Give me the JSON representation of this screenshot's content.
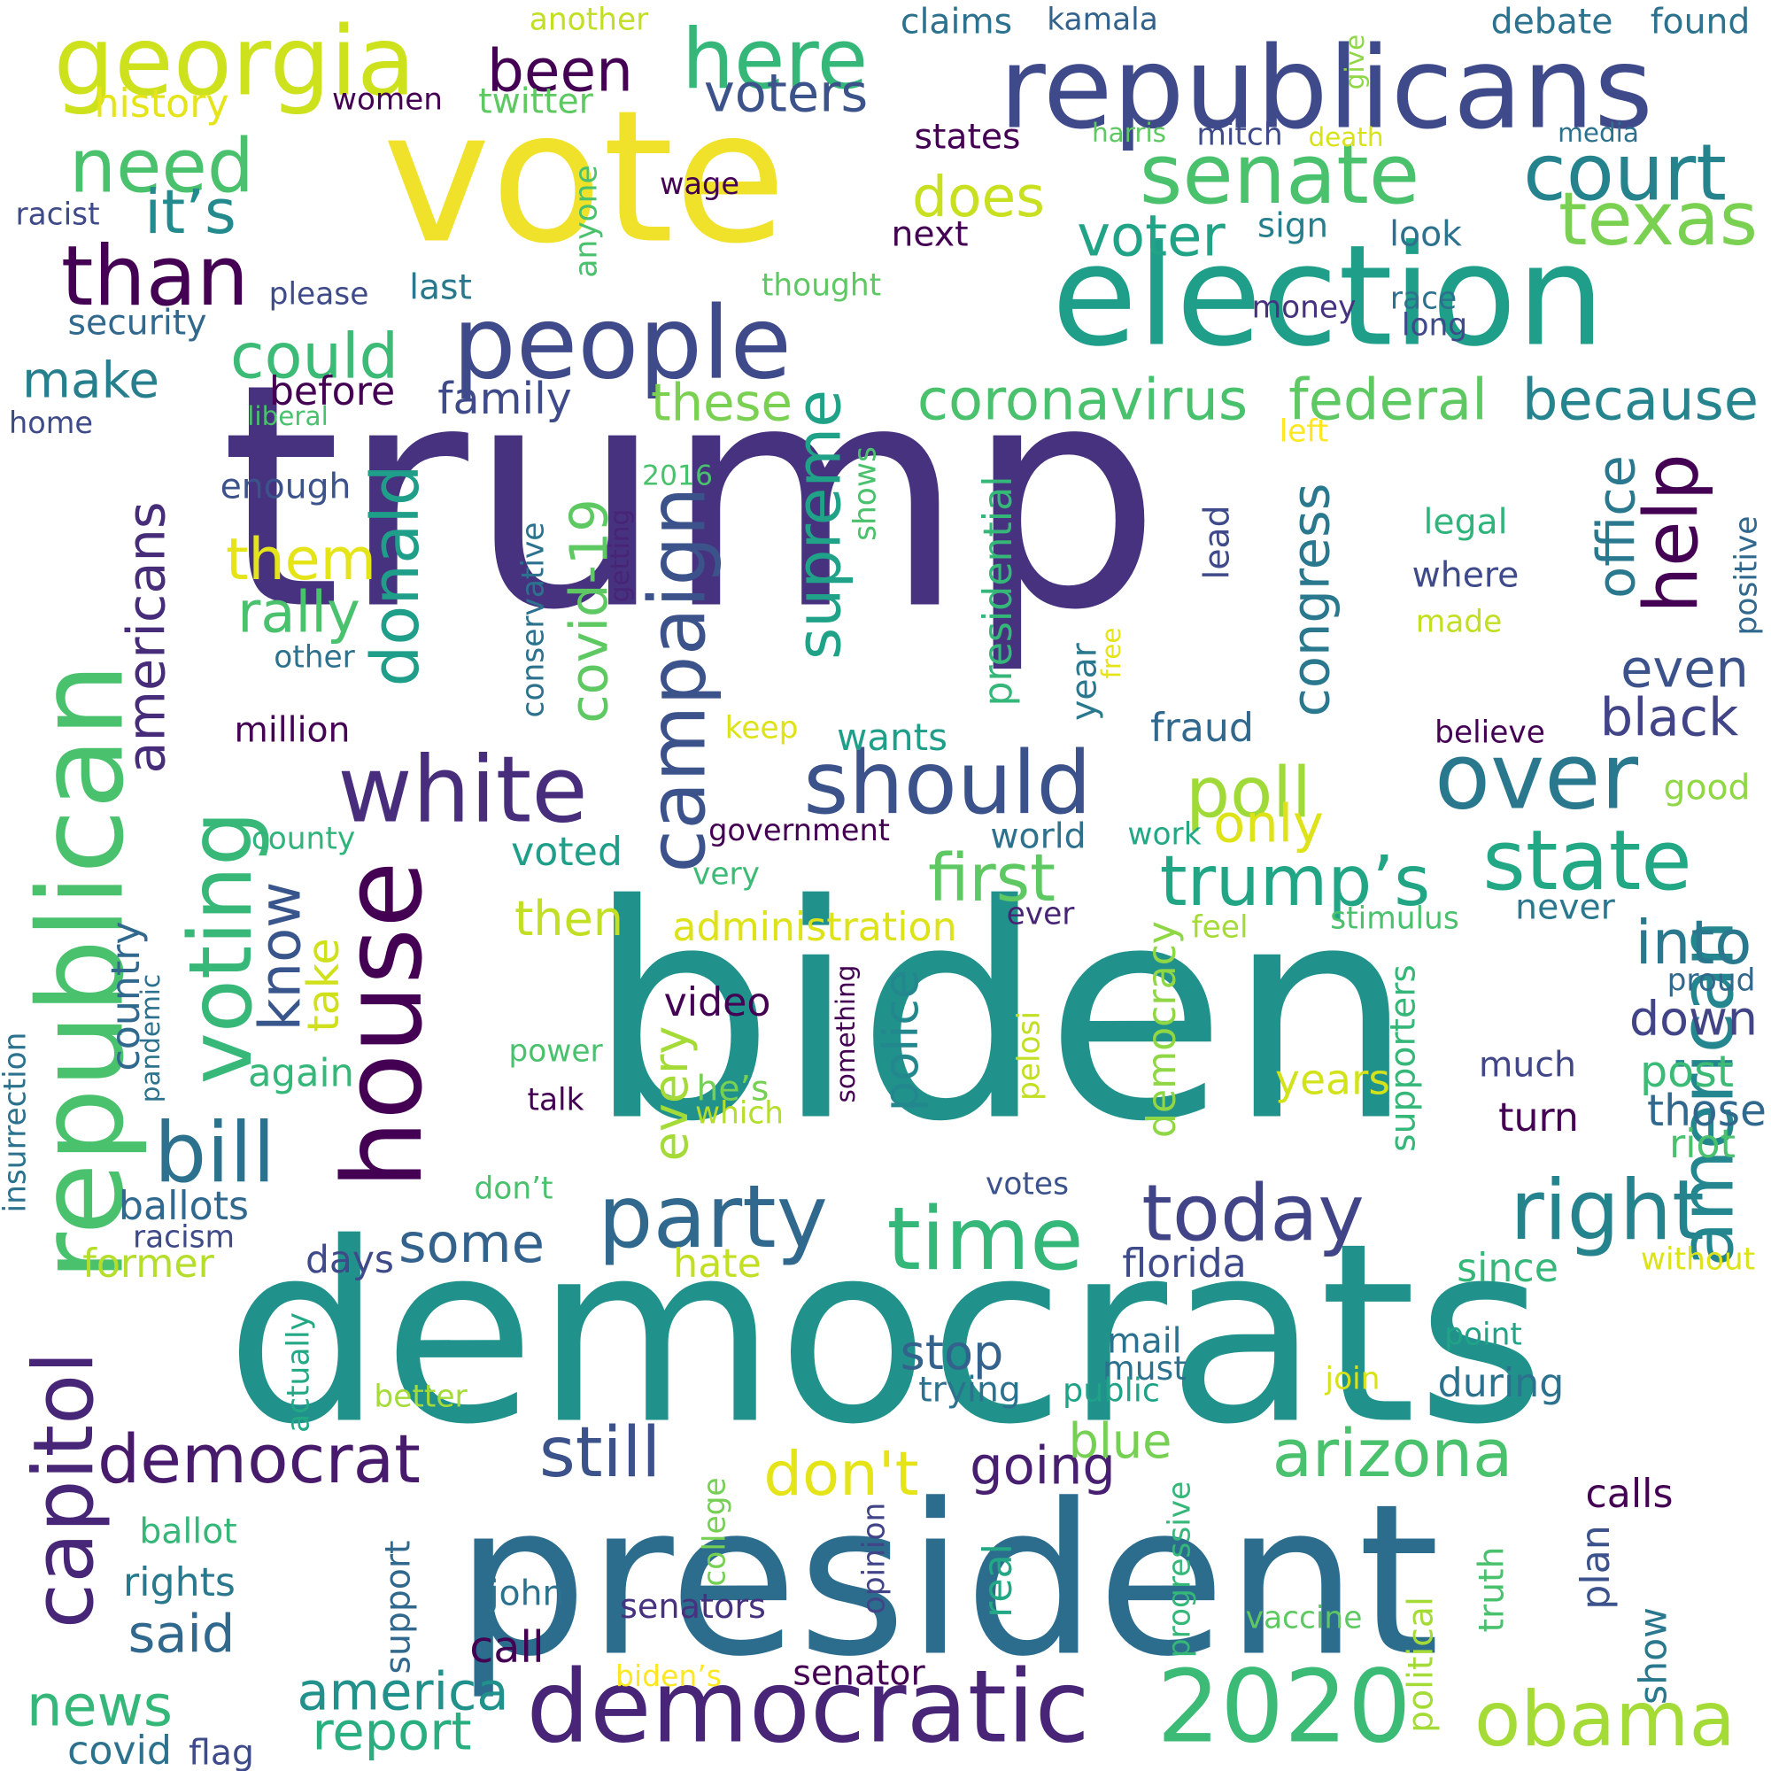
{
  "words": [
    {
      "text": "trump",
      "color": "#46327e"
    },
    {
      "text": "biden",
      "color": "#21918c"
    },
    {
      "text": "vote",
      "color": "#f0e22a"
    },
    {
      "text": "democrats",
      "color": "#21918c"
    },
    {
      "text": "president",
      "color": "#2c6d8e"
    },
    {
      "text": "election",
      "color": "#1f9e89"
    },
    {
      "text": "republicans",
      "color": "#3e4a89"
    },
    {
      "text": "republican",
      "color": "#4ac16d"
    },
    {
      "text": "house",
      "color": "#440154"
    },
    {
      "text": "people",
      "color": "#3e4a89"
    },
    {
      "text": "georgia",
      "color": "#cde11d"
    },
    {
      "text": "white",
      "color": "#472d7b"
    },
    {
      "text": "should",
      "color": "#3b528b"
    },
    {
      "text": "senate",
      "color": "#4ac16d"
    },
    {
      "text": "democratic",
      "color": "#482576"
    },
    {
      "text": "party",
      "color": "#31688e"
    },
    {
      "text": "time",
      "color": "#35b779"
    },
    {
      "text": "voting",
      "color": "#37b878"
    },
    {
      "text": "campaign",
      "color": "#3b528b"
    },
    {
      "text": "over",
      "color": "#2a788e"
    },
    {
      "text": "2020",
      "color": "#3bbb75"
    },
    {
      "text": "capitol",
      "color": "#482677"
    },
    {
      "text": "than",
      "color": "#440154"
    },
    {
      "text": "today",
      "color": "#414487"
    },
    {
      "text": "right",
      "color": "#25838e"
    },
    {
      "text": "state",
      "color": "#22a884"
    },
    {
      "text": "donald",
      "color": "#1f9e89"
    },
    {
      "text": "obama",
      "color": "#a5db36"
    },
    {
      "text": "court",
      "color": "#25838e"
    },
    {
      "text": "here",
      "color": "#35b779"
    },
    {
      "text": "need",
      "color": "#4ac16d"
    },
    {
      "text": "democrat",
      "color": "#481a6c"
    },
    {
      "text": "american",
      "color": "#24868e"
    },
    {
      "text": "help",
      "color": "#440154"
    },
    {
      "text": "bill",
      "color": "#2c728e"
    },
    {
      "text": "arizona",
      "color": "#4ac16d"
    },
    {
      "text": "texas",
      "color": "#7ad151"
    },
    {
      "text": "supreme",
      "color": "#1fa287"
    },
    {
      "text": "first",
      "color": "#5ec962"
    },
    {
      "text": "trump’s",
      "color": "#21a585"
    },
    {
      "text": "still",
      "color": "#3b528b"
    },
    {
      "text": "know",
      "color": "#39568c"
    },
    {
      "text": "americans",
      "color": "#472c7a"
    },
    {
      "text": "poll",
      "color": "#a0da39"
    },
    {
      "text": "coronavirus",
      "color": "#4ac16d"
    },
    {
      "text": "because",
      "color": "#25848e"
    },
    {
      "text": "been",
      "color": "#440154"
    },
    {
      "text": "could",
      "color": "#3bbb75"
    },
    {
      "text": "them",
      "color": "#e5e419"
    },
    {
      "text": "news",
      "color": "#35b779"
    },
    {
      "text": "some",
      "color": "#33638d"
    },
    {
      "text": "into",
      "color": "#2a788e"
    },
    {
      "text": "it’s",
      "color": "#238a8d"
    },
    {
      "text": "voter",
      "color": "#20a386"
    },
    {
      "text": "voters",
      "color": "#3b528b"
    },
    {
      "text": "federal",
      "color": "#5ec962"
    },
    {
      "text": "covid-19",
      "color": "#5ec962"
    },
    {
      "text": "rally",
      "color": "#4ac16d"
    },
    {
      "text": "make",
      "color": "#277f8e"
    },
    {
      "text": "does",
      "color": "#c8e020"
    },
    {
      "text": "these",
      "color": "#7ad151"
    },
    {
      "text": "america",
      "color": "#21918c"
    },
    {
      "text": "report",
      "color": "#29af7f"
    },
    {
      "text": "don't",
      "color": "#e5e419"
    },
    {
      "text": "going",
      "color": "#481f70"
    },
    {
      "text": "congress",
      "color": "#2a788e"
    },
    {
      "text": "office",
      "color": "#2a788e"
    },
    {
      "text": "black",
      "color": "#414487"
    },
    {
      "text": "even",
      "color": "#3b528b"
    },
    {
      "text": "down",
      "color": "#414487"
    },
    {
      "text": "take",
      "color": "#d0e11c"
    },
    {
      "text": "police",
      "color": "#23888e"
    },
    {
      "text": "every",
      "color": "#a5db36"
    },
    {
      "text": "said",
      "color": "#31688e"
    },
    {
      "text": "only",
      "color": "#dde318"
    },
    {
      "text": "then",
      "color": "#c2df23"
    },
    {
      "text": "stop",
      "color": "#33638d"
    },
    {
      "text": "administration",
      "color": "#dde318"
    },
    {
      "text": "country",
      "color": "#31688e"
    },
    {
      "text": "blue",
      "color": "#75d054"
    },
    {
      "text": "former",
      "color": "#b5de2b"
    },
    {
      "text": "ballots",
      "color": "#31688e"
    },
    {
      "text": "florida",
      "color": "#3e4a89"
    },
    {
      "text": "video",
      "color": "#440154"
    },
    {
      "text": "much",
      "color": "#404688"
    },
    {
      "text": "post",
      "color": "#3bbb75"
    },
    {
      "text": "those",
      "color": "#31688e"
    },
    {
      "text": "years",
      "color": "#d2e21b"
    },
    {
      "text": "supporters",
      "color": "#35b779"
    },
    {
      "text": "democracy",
      "color": "#8fd744"
    },
    {
      "text": "presidential",
      "color": "#35b779"
    },
    {
      "text": "family",
      "color": "#3e4a89"
    },
    {
      "text": "before",
      "color": "#440154"
    },
    {
      "text": "fraud",
      "color": "#31688e"
    },
    {
      "text": "wants",
      "color": "#1f9e89"
    },
    {
      "text": "voted",
      "color": "#1f9e89"
    },
    {
      "text": "again",
      "color": "#35b779"
    },
    {
      "text": "rights",
      "color": "#2a788e"
    },
    {
      "text": "call",
      "color": "#440154"
    },
    {
      "text": "covid",
      "color": "#2c728e"
    },
    {
      "text": "flag",
      "color": "#3e4a89"
    },
    {
      "text": "days",
      "color": "#3e4a89"
    },
    {
      "text": "hate",
      "color": "#c2df23"
    },
    {
      "text": "since",
      "color": "#35b779"
    },
    {
      "text": "riot",
      "color": "#4ac16d"
    },
    {
      "text": "turn",
      "color": "#440154"
    },
    {
      "text": "mail",
      "color": "#2c728e"
    },
    {
      "text": "must",
      "color": "#2c728e"
    },
    {
      "text": "during",
      "color": "#2c728e"
    },
    {
      "text": "trying",
      "color": "#2c728e"
    },
    {
      "text": "public",
      "color": "#1fa287"
    },
    {
      "text": "plan",
      "color": "#3b528b"
    },
    {
      "text": "show",
      "color": "#2a788e"
    },
    {
      "text": "calls",
      "color": "#440154"
    },
    {
      "text": "truth",
      "color": "#4ac16d"
    },
    {
      "text": "political",
      "color": "#a5db36"
    },
    {
      "text": "real",
      "color": "#22a884"
    },
    {
      "text": "support",
      "color": "#31688e"
    },
    {
      "text": "senator",
      "color": "#440154"
    },
    {
      "text": "senators",
      "color": "#46327e"
    },
    {
      "text": "john",
      "color": "#2c728e"
    },
    {
      "text": "biden’s",
      "color": "#fde725"
    },
    {
      "text": "vaccine",
      "color": "#5ec962"
    },
    {
      "text": "progressive",
      "color": "#35b779"
    },
    {
      "text": "opinion",
      "color": "#414487"
    },
    {
      "text": "college",
      "color": "#75d054"
    },
    {
      "text": "ballot",
      "color": "#35b779"
    },
    {
      "text": "racism",
      "color": "#3e4a89"
    },
    {
      "text": "better",
      "color": "#a5db36"
    },
    {
      "text": "actually",
      "color": "#22a884"
    },
    {
      "text": "join",
      "color": "#d8e219"
    },
    {
      "text": "point",
      "color": "#20a386"
    },
    {
      "text": "without",
      "color": "#dde318"
    },
    {
      "text": "power",
      "color": "#4ac16d"
    },
    {
      "text": "talk",
      "color": "#440154"
    },
    {
      "text": "he’s",
      "color": "#75d054"
    },
    {
      "text": "which",
      "color": "#b5de2b"
    },
    {
      "text": "something",
      "color": "#440154"
    },
    {
      "text": "pelosi",
      "color": "#c2df23"
    },
    {
      "text": "votes",
      "color": "#3b528b"
    },
    {
      "text": "don’t",
      "color": "#4ac16d"
    },
    {
      "text": "world",
      "color": "#2c728e"
    },
    {
      "text": "work",
      "color": "#22a884"
    },
    {
      "text": "government",
      "color": "#440154"
    },
    {
      "text": "very",
      "color": "#3bbb75"
    },
    {
      "text": "county",
      "color": "#2fb47c"
    },
    {
      "text": "feel",
      "color": "#a5db36"
    },
    {
      "text": "stimulus",
      "color": "#4ac16d"
    },
    {
      "text": "ever",
      "color": "#482475"
    },
    {
      "text": "never",
      "color": "#2a788e"
    },
    {
      "text": "proud",
      "color": "#31688e"
    },
    {
      "text": "good",
      "color": "#8fd744"
    },
    {
      "text": "keep",
      "color": "#dde318"
    },
    {
      "text": "million",
      "color": "#440154"
    },
    {
      "text": "other",
      "color": "#2c728e"
    },
    {
      "text": "enough",
      "color": "#3b528b"
    },
    {
      "text": "2016",
      "color": "#4ac16d"
    },
    {
      "text": "getting",
      "color": "#482475"
    },
    {
      "text": "conservative",
      "color": "#2c728e"
    },
    {
      "text": "shows",
      "color": "#4ac16d"
    },
    {
      "text": "lead",
      "color": "#3e4a89"
    },
    {
      "text": "year",
      "color": "#2a788e"
    },
    {
      "text": "free",
      "color": "#e5e419"
    },
    {
      "text": "legal",
      "color": "#2fb47c"
    },
    {
      "text": "where",
      "color": "#3e4a89"
    },
    {
      "text": "made",
      "color": "#c2df23"
    },
    {
      "text": "believe",
      "color": "#440154"
    },
    {
      "text": "positive",
      "color": "#31688e"
    },
    {
      "text": "left",
      "color": "#fde725"
    },
    {
      "text": "long",
      "color": "#3e4a89"
    },
    {
      "text": "race",
      "color": "#2c728e"
    },
    {
      "text": "money",
      "color": "#46327e"
    },
    {
      "text": "look",
      "color": "#2c728e"
    },
    {
      "text": "sign",
      "color": "#277f8e"
    },
    {
      "text": "thought",
      "color": "#5ec962"
    },
    {
      "text": "next",
      "color": "#440154"
    },
    {
      "text": "anyone",
      "color": "#4ac16d"
    },
    {
      "text": "last",
      "color": "#2a788e"
    },
    {
      "text": "please",
      "color": "#3e4a89"
    },
    {
      "text": "security",
      "color": "#31688e"
    },
    {
      "text": "liberal",
      "color": "#4ac16d"
    },
    {
      "text": "home",
      "color": "#3e4a89"
    },
    {
      "text": "racist",
      "color": "#3e4a89"
    },
    {
      "text": "wage",
      "color": "#440154"
    },
    {
      "text": "women",
      "color": "#440154"
    },
    {
      "text": "twitter",
      "color": "#5ec962"
    },
    {
      "text": "history",
      "color": "#e5e419"
    },
    {
      "text": "another",
      "color": "#c2df23"
    },
    {
      "text": "claims",
      "color": "#2c728e"
    },
    {
      "text": "kamala",
      "color": "#33638d"
    },
    {
      "text": "harris",
      "color": "#5ec962"
    },
    {
      "text": "mitch",
      "color": "#3e4a89"
    },
    {
      "text": "states",
      "color": "#440154"
    },
    {
      "text": "death",
      "color": "#d8e219"
    },
    {
      "text": "media",
      "color": "#2c728e"
    },
    {
      "text": "debate",
      "color": "#2c728e"
    },
    {
      "text": "found",
      "color": "#2c728e"
    },
    {
      "text": "give",
      "color": "#8fd744"
    },
    {
      "text": "pandemic",
      "color": "#2c728e"
    },
    {
      "text": "insurrection",
      "color": "#2c728e"
    }
  ]
}
